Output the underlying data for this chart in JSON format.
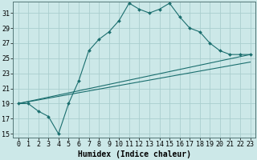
{
  "xlabel": "Humidex (Indice chaleur)",
  "bg_color": "#cce8e8",
  "grid_color": "#aacece",
  "line_color": "#1a6e6e",
  "xlim": [
    -0.5,
    23.5
  ],
  "ylim": [
    14.5,
    32.5
  ],
  "xtick_pos": [
    0,
    1,
    2,
    3,
    4,
    5,
    6,
    7,
    8,
    9,
    10,
    11,
    12,
    13,
    14,
    15,
    16,
    17,
    18,
    19,
    20,
    21,
    22,
    23
  ],
  "xtick_labels": [
    "0",
    "1",
    "2",
    "3",
    "4",
    "5",
    "6",
    "7",
    "8",
    "9",
    "10",
    "11",
    "12",
    "13",
    "14",
    "15",
    "16",
    "17",
    "18",
    "19",
    "20",
    "21",
    "22",
    "23"
  ],
  "ytick_pos": [
    15,
    17,
    19,
    21,
    23,
    25,
    27,
    29,
    31
  ],
  "ytick_labels": [
    "15",
    "17",
    "19",
    "21",
    "23",
    "25",
    "27",
    "29",
    "31"
  ],
  "main_x": [
    0,
    1,
    2,
    3,
    4,
    5,
    6,
    7,
    8,
    9,
    10,
    11,
    12,
    13,
    14,
    15,
    16,
    17,
    18,
    19,
    20,
    21,
    22,
    23
  ],
  "main_y": [
    19,
    19,
    18,
    17.3,
    15,
    19,
    22,
    26,
    27.5,
    28.5,
    30,
    32.3,
    31.5,
    31,
    31.5,
    32.3,
    30.5,
    29,
    28.5,
    27,
    26,
    25.5,
    25.5,
    25.5
  ],
  "line1_x": [
    0,
    23
  ],
  "line1_y": [
    19,
    25.5
  ],
  "line2_x": [
    0,
    23
  ],
  "line2_y": [
    19,
    24.5
  ],
  "fontsize_label": 7,
  "fontsize_tick": 6
}
